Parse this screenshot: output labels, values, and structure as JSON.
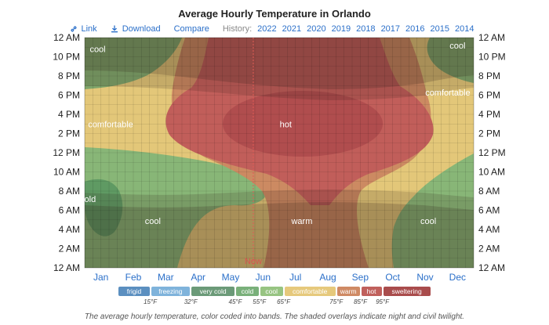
{
  "title": "Average Hourly Temperature in Orlando",
  "toolbar": {
    "link_label": "Link",
    "download_label": "Download",
    "compare_label": "Compare",
    "history_label": "History:",
    "years": [
      "2022",
      "2021",
      "2020",
      "2019",
      "2018",
      "2017",
      "2016",
      "2015",
      "2014"
    ]
  },
  "chart_data": {
    "type": "heatmap",
    "title": "Average Hourly Temperature in Orlando",
    "x_categories": [
      "Jan",
      "Feb",
      "Mar",
      "Apr",
      "May",
      "Jun",
      "Jul",
      "Aug",
      "Sep",
      "Oct",
      "Nov",
      "Dec"
    ],
    "y_tick_labels": [
      "12 AM",
      "2 AM",
      "4 AM",
      "6 AM",
      "8 AM",
      "10 AM",
      "12 PM",
      "2 PM",
      "4 PM",
      "6 PM",
      "8 PM",
      "10 PM",
      "12 AM"
    ],
    "band_labels": [
      {
        "text": "cool",
        "month": 1.4,
        "hour": 22.8
      },
      {
        "text": "cool",
        "month": 12.5,
        "hour": 23.2
      },
      {
        "text": "comfortable",
        "month": 1.8,
        "hour": 15.0
      },
      {
        "text": "comfortable",
        "month": 12.2,
        "hour": 18.3
      },
      {
        "text": "hot",
        "month": 7.2,
        "hour": 15.0
      },
      {
        "text": "cold",
        "month": 1.1,
        "hour": 7.2
      },
      {
        "text": "cool",
        "month": 3.1,
        "hour": 4.9
      },
      {
        "text": "warm",
        "month": 7.7,
        "hour": 4.9
      },
      {
        "text": "cool",
        "month": 11.6,
        "hour": 4.9
      }
    ],
    "now_label": {
      "text": "Now",
      "month": 5.7
    },
    "legend": {
      "bands": [
        {
          "name": "frigid",
          "color": "#5b8fc0"
        },
        {
          "name": "freezing",
          "color": "#7fb3db"
        },
        {
          "name": "very cold",
          "color": "#6b9a78"
        },
        {
          "name": "cold",
          "color": "#79b07a"
        },
        {
          "name": "cool",
          "color": "#97c482"
        },
        {
          "name": "comfortable",
          "color": "#e6c97c"
        },
        {
          "name": "warm",
          "color": "#cf8a64"
        },
        {
          "name": "hot",
          "color": "#c0605c"
        },
        {
          "name": "sweltering",
          "color": "#a94c4c"
        }
      ],
      "thresholds": [
        "15°F",
        "32°F",
        "45°F",
        "55°F",
        "65°F",
        "75°F",
        "85°F",
        "95°F"
      ]
    }
  },
  "caption": "The average hourly temperature, color coded into bands. The shaded overlays indicate night and civil twilight."
}
